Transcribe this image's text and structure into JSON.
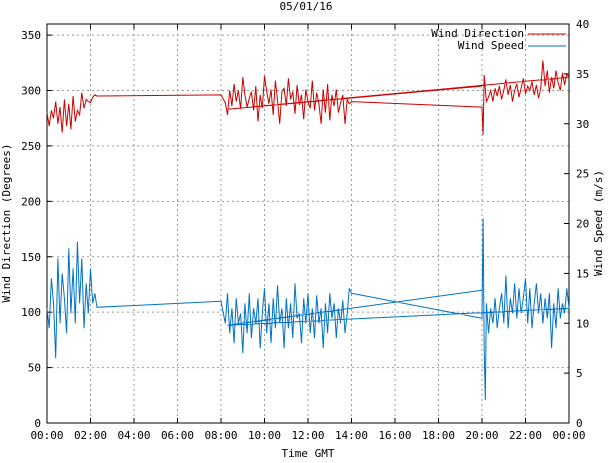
{
  "chart_data": {
    "type": "line",
    "title": "05/01/16",
    "xlabel": "Time GMT",
    "ylabel_left": "Wind Direction (Degrees)",
    "ylabel_right": "Wind Speed (m/s)",
    "x_ticks": [
      "00:00",
      "02:00",
      "04:00",
      "06:00",
      "08:00",
      "10:00",
      "12:00",
      "14:00",
      "16:00",
      "18:00",
      "20:00",
      "22:00",
      "00:00"
    ],
    "xlim_hours": [
      0,
      24
    ],
    "ylim_left": [
      0,
      360
    ],
    "ylim_right": [
      0,
      40
    ],
    "y_ticks_left": [
      0,
      50,
      100,
      150,
      200,
      250,
      300,
      350
    ],
    "y_ticks_right": [
      0,
      5,
      10,
      15,
      20,
      25,
      30,
      35,
      40
    ],
    "grid": true,
    "legend_position": "top-right",
    "colors": {
      "direction": "#cc0000",
      "speed": "#0072c6"
    },
    "series": [
      {
        "name": "Wind Direction",
        "axis": "left",
        "points": [
          [
            0.0,
            280
          ],
          [
            0.1,
            268
          ],
          [
            0.2,
            282
          ],
          [
            0.3,
            275
          ],
          [
            0.4,
            290
          ],
          [
            0.5,
            270
          ],
          [
            0.6,
            285
          ],
          [
            0.7,
            262
          ],
          [
            0.8,
            292
          ],
          [
            0.9,
            268
          ],
          [
            1.0,
            288
          ],
          [
            1.1,
            265
          ],
          [
            1.2,
            295
          ],
          [
            1.3,
            272
          ],
          [
            1.4,
            282
          ],
          [
            1.5,
            278
          ],
          [
            1.6,
            298
          ],
          [
            1.7,
            284
          ],
          [
            1.8,
            292
          ],
          [
            1.9,
            290
          ],
          [
            2.0,
            289
          ],
          [
            2.1,
            294
          ],
          [
            2.2,
            296
          ],
          [
            2.3,
            295
          ],
          [
            8.0,
            296
          ],
          [
            8.2,
            289
          ],
          [
            8.3,
            278
          ],
          [
            8.4,
            300
          ],
          [
            8.5,
            286
          ],
          [
            8.6,
            306
          ],
          [
            8.7,
            290
          ],
          [
            8.8,
            300
          ],
          [
            8.9,
            283
          ],
          [
            9.0,
            312
          ],
          [
            9.1,
            296
          ],
          [
            9.2,
            285
          ],
          [
            9.3,
            293
          ],
          [
            9.4,
            299
          ],
          [
            9.5,
            282
          ],
          [
            9.6,
            304
          ],
          [
            9.7,
            272
          ],
          [
            9.8,
            296
          ],
          [
            9.9,
            284
          ],
          [
            10.0,
            313
          ],
          [
            10.1,
            299
          ],
          [
            10.2,
            288
          ],
          [
            10.3,
            301
          ],
          [
            10.4,
            278
          ],
          [
            10.5,
            309
          ],
          [
            10.6,
            291
          ],
          [
            10.7,
            270
          ],
          [
            10.8,
            299
          ],
          [
            10.9,
            302
          ],
          [
            11.0,
            286
          ],
          [
            11.1,
            311
          ],
          [
            11.2,
            292
          ],
          [
            11.3,
            299
          ],
          [
            11.4,
            279
          ],
          [
            11.5,
            305
          ],
          [
            11.6,
            287
          ],
          [
            11.7,
            296
          ],
          [
            11.8,
            274
          ],
          [
            11.9,
            301
          ],
          [
            12.0,
            290
          ],
          [
            12.1,
            284
          ],
          [
            12.2,
            309
          ],
          [
            12.3,
            282
          ],
          [
            12.4,
            298
          ],
          [
            12.5,
            288
          ],
          [
            12.6,
            270
          ],
          [
            12.7,
            301
          ],
          [
            12.8,
            280
          ],
          [
            12.9,
            306
          ],
          [
            13.0,
            273
          ],
          [
            13.1,
            296
          ],
          [
            13.2,
            286
          ],
          [
            13.3,
            301
          ],
          [
            13.4,
            280
          ],
          [
            13.5,
            289
          ],
          [
            13.6,
            296
          ],
          [
            13.7,
            270
          ],
          [
            13.8,
            292
          ],
          [
            13.9,
            288
          ],
          [
            14.0,
            290
          ],
          [
            20.0,
            285
          ],
          [
            20.05,
            260
          ],
          [
            20.1,
            314
          ],
          [
            20.2,
            290
          ],
          [
            20.3,
            294
          ],
          [
            20.4,
            300
          ],
          [
            20.5,
            290
          ],
          [
            20.6,
            302
          ],
          [
            20.7,
            295
          ],
          [
            20.8,
            304
          ],
          [
            20.9,
            292
          ],
          [
            21.0,
            300
          ],
          [
            21.1,
            310
          ],
          [
            21.2,
            296
          ],
          [
            21.3,
            305
          ],
          [
            21.4,
            290
          ],
          [
            21.5,
            300
          ],
          [
            21.6,
            306
          ],
          [
            21.7,
            294
          ],
          [
            21.8,
            302
          ],
          [
            21.9,
            311
          ],
          [
            22.0,
            297
          ],
          [
            22.1,
            304
          ],
          [
            22.2,
            300
          ],
          [
            22.3,
            308
          ],
          [
            22.4,
            296
          ],
          [
            22.5,
            305
          ],
          [
            22.6,
            293
          ],
          [
            22.7,
            302
          ],
          [
            22.8,
            327
          ],
          [
            22.9,
            304
          ],
          [
            23.0,
            318
          ],
          [
            23.1,
            298
          ],
          [
            23.2,
            312
          ],
          [
            23.3,
            302
          ],
          [
            23.4,
            318
          ],
          [
            23.5,
            307
          ],
          [
            23.6,
            300
          ],
          [
            23.7,
            316
          ],
          [
            23.8,
            305
          ],
          [
            23.9,
            315
          ],
          [
            24.0,
            312
          ],
          [
            8.3,
            283
          ],
          [
            20.0,
            304
          ]
        ]
      },
      {
        "name": "Wind Speed",
        "axis": "right",
        "points": [
          [
            0.0,
            11.5
          ],
          [
            0.1,
            9.5
          ],
          [
            0.2,
            14.5
          ],
          [
            0.3,
            12
          ],
          [
            0.4,
            6.5
          ],
          [
            0.5,
            16.5
          ],
          [
            0.6,
            10
          ],
          [
            0.7,
            15
          ],
          [
            0.8,
            12.5
          ],
          [
            0.9,
            9
          ],
          [
            1.0,
            17.5
          ],
          [
            1.1,
            11
          ],
          [
            1.2,
            15.5
          ],
          [
            1.3,
            10
          ],
          [
            1.4,
            18.2
          ],
          [
            1.5,
            12
          ],
          [
            1.6,
            16.5
          ],
          [
            1.7,
            9.5
          ],
          [
            1.8,
            14
          ],
          [
            1.9,
            11
          ],
          [
            2.0,
            15.5
          ],
          [
            2.1,
            12
          ],
          [
            2.2,
            13
          ],
          [
            2.3,
            11.6
          ],
          [
            8.0,
            12.2
          ],
          [
            8.2,
            10
          ],
          [
            8.3,
            13
          ],
          [
            8.4,
            9
          ],
          [
            8.5,
            11.5
          ],
          [
            8.6,
            8
          ],
          [
            8.7,
            12.5
          ],
          [
            8.8,
            10
          ],
          [
            8.9,
            11
          ],
          [
            9.0,
            7
          ],
          [
            9.1,
            12
          ],
          [
            9.2,
            9
          ],
          [
            9.3,
            13
          ],
          [
            9.4,
            8.5
          ],
          [
            9.5,
            11.5
          ],
          [
            9.6,
            10
          ],
          [
            9.7,
            12.5
          ],
          [
            9.8,
            7.5
          ],
          [
            9.9,
            11
          ],
          [
            10.0,
            13.5
          ],
          [
            10.1,
            9
          ],
          [
            10.2,
            12
          ],
          [
            10.3,
            8
          ],
          [
            10.4,
            12.5
          ],
          [
            10.5,
            9.5
          ],
          [
            10.6,
            13.8
          ],
          [
            10.7,
            10
          ],
          [
            10.8,
            11.5
          ],
          [
            10.9,
            7.5
          ],
          [
            11.0,
            12.5
          ],
          [
            11.1,
            9.5
          ],
          [
            11.2,
            12
          ],
          [
            11.3,
            8.5
          ],
          [
            11.4,
            14
          ],
          [
            11.5,
            10.5
          ],
          [
            11.6,
            11
          ],
          [
            11.7,
            8
          ],
          [
            11.8,
            12.5
          ],
          [
            11.9,
            10
          ],
          [
            12.0,
            13
          ],
          [
            12.1,
            9
          ],
          [
            12.2,
            11.5
          ],
          [
            12.3,
            8.5
          ],
          [
            12.4,
            12.8
          ],
          [
            12.5,
            10
          ],
          [
            12.6,
            11.5
          ],
          [
            12.7,
            7.5
          ],
          [
            12.8,
            12
          ],
          [
            12.9,
            9
          ],
          [
            13.0,
            13
          ],
          [
            13.1,
            10.5
          ],
          [
            13.2,
            12
          ],
          [
            13.3,
            8.5
          ],
          [
            13.4,
            11.5
          ],
          [
            13.5,
            10
          ],
          [
            13.6,
            12.3
          ],
          [
            13.7,
            9
          ],
          [
            13.8,
            11
          ],
          [
            13.9,
            13.5
          ],
          [
            14.0,
            13
          ],
          [
            20.0,
            10.5
          ],
          [
            20.05,
            20.5
          ],
          [
            20.1,
            7.5
          ],
          [
            20.15,
            2.3
          ],
          [
            20.2,
            12
          ],
          [
            20.3,
            9
          ],
          [
            20.4,
            11.5
          ],
          [
            20.5,
            10
          ],
          [
            20.6,
            12.5
          ],
          [
            20.7,
            9.5
          ],
          [
            20.8,
            11.5
          ],
          [
            20.9,
            13
          ],
          [
            21.0,
            10
          ],
          [
            21.1,
            14.8
          ],
          [
            21.2,
            9.5
          ],
          [
            21.3,
            12.5
          ],
          [
            21.4,
            11
          ],
          [
            21.5,
            14
          ],
          [
            21.6,
            10.5
          ],
          [
            21.7,
            13.5
          ],
          [
            21.8,
            11
          ],
          [
            21.9,
            12.5
          ],
          [
            22.0,
            14.5
          ],
          [
            22.1,
            10
          ],
          [
            22.2,
            13.5
          ],
          [
            22.3,
            9.5
          ],
          [
            22.4,
            12
          ],
          [
            22.5,
            14
          ],
          [
            22.6,
            11
          ],
          [
            22.7,
            13
          ],
          [
            22.8,
            10
          ],
          [
            22.9,
            12.5
          ],
          [
            23.0,
            10.5
          ],
          [
            23.1,
            13
          ],
          [
            23.2,
            7.5
          ],
          [
            23.3,
            12
          ],
          [
            23.4,
            9.5
          ],
          [
            23.5,
            13.5
          ],
          [
            23.6,
            10.5
          ],
          [
            23.7,
            12
          ],
          [
            23.8,
            11
          ],
          [
            23.9,
            13.5
          ],
          [
            24.0,
            11.5
          ],
          [
            8.3,
            9.8
          ],
          [
            20.0,
            13.3
          ]
        ]
      }
    ]
  }
}
